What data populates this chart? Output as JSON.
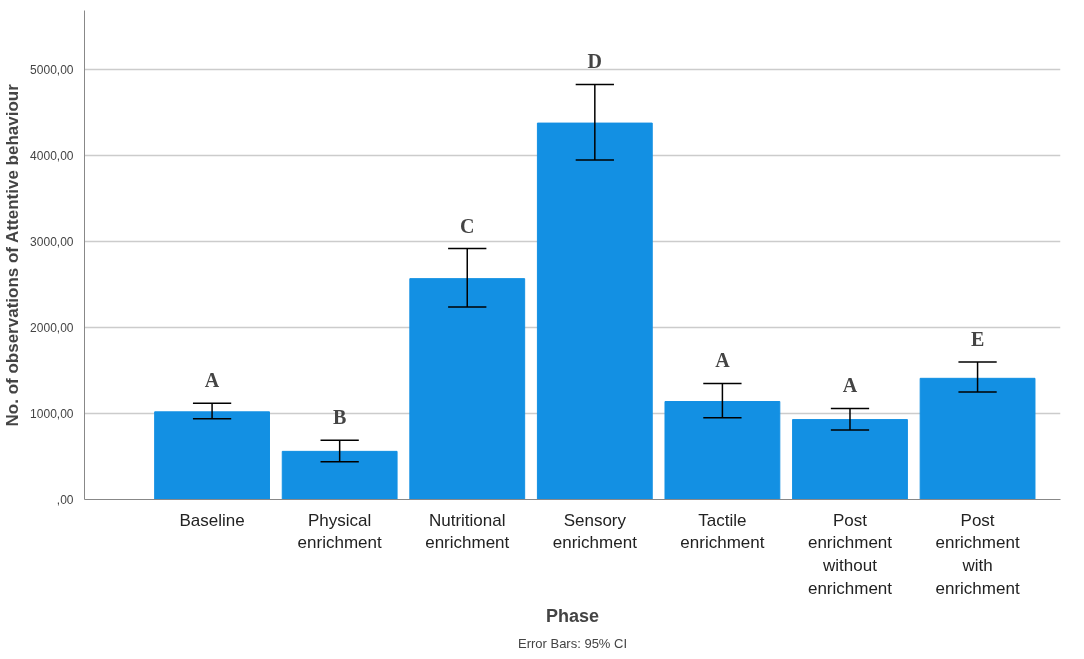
{
  "chart_data": {
    "type": "bar",
    "xlabel": "Phase",
    "ylabel": "No. of observations of Attentive behaviour",
    "categories": [
      "Baseline",
      "Physical enrichment",
      "Nutritional enrichment",
      "Sensory enrichment",
      "Tactile enrichment",
      "Post enrichment without enrichment",
      "Post enrichment with enrichment"
    ],
    "values": [
      1020,
      560,
      2570,
      4380,
      1140,
      930,
      1410
    ],
    "errors": [
      [
        940,
        1120
      ],
      [
        440,
        690
      ],
      [
        2240,
        2920
      ],
      [
        3950,
        4830
      ],
      [
        950,
        1350
      ],
      [
        810,
        1060
      ],
      [
        1250,
        1600
      ]
    ],
    "color": "#1390e3",
    "ylim": [
      0,
      5690
    ],
    "yticks": [
      {
        "value": 0,
        "label": ",00"
      },
      {
        "value": 1000,
        "label": "1000,00"
      },
      {
        "value": 2000,
        "label": "2000,00"
      },
      {
        "value": 3000,
        "label": "3000,00"
      },
      {
        "value": 4000,
        "label": "4000,00"
      },
      {
        "value": 5000,
        "label": "5000,00"
      }
    ],
    "grid": "y",
    "annotations": [
      "A",
      "B",
      "C",
      "D",
      "A",
      "A",
      "E",
      "Error Bars: 95% CI"
    ]
  }
}
